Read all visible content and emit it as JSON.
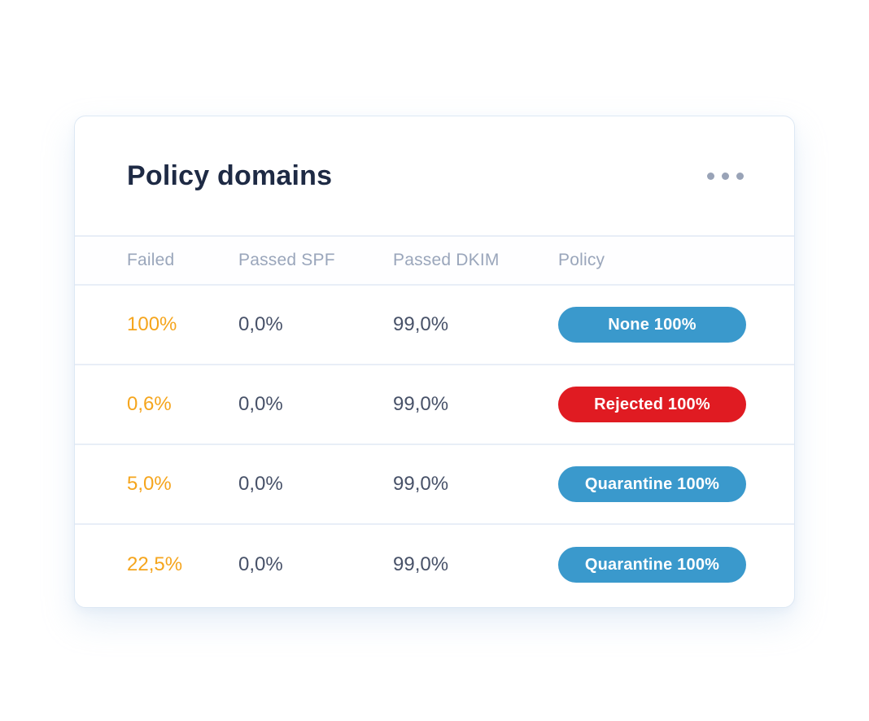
{
  "card": {
    "title": "Policy domains",
    "menu_icon": "ellipsis-menu-icon"
  },
  "table": {
    "columns": [
      "Failed",
      "Passed SPF",
      "Passed DKIM",
      "Policy"
    ],
    "rows": [
      {
        "failed": "100%",
        "passed_spf": "0,0%",
        "passed_dkim": "99,0%",
        "policy": {
          "label": "None 100%",
          "color": "#3a99cc"
        }
      },
      {
        "failed": "0,6%",
        "passed_spf": "0,0%",
        "passed_dkim": "99,0%",
        "policy": {
          "label": "Rejected 100%",
          "color": "#e01b22"
        }
      },
      {
        "failed": "5,0%",
        "passed_spf": "0,0%",
        "passed_dkim": "99,0%",
        "policy": {
          "label": "Quarantine 100%",
          "color": "#3a99cc"
        }
      },
      {
        "failed": "22,5%",
        "passed_spf": "0,0%",
        "passed_dkim": "99,0%",
        "policy": {
          "label": "Quarantine 100%",
          "color": "#3a99cc"
        }
      }
    ]
  },
  "colors": {
    "failed_text": "#f5a51d",
    "value_text": "#475168",
    "header_text": "#9aa6bb",
    "title_text": "#1e2a44",
    "divider": "#e8eef7",
    "pill_blue": "#3a99cc",
    "pill_red": "#e01b22"
  }
}
